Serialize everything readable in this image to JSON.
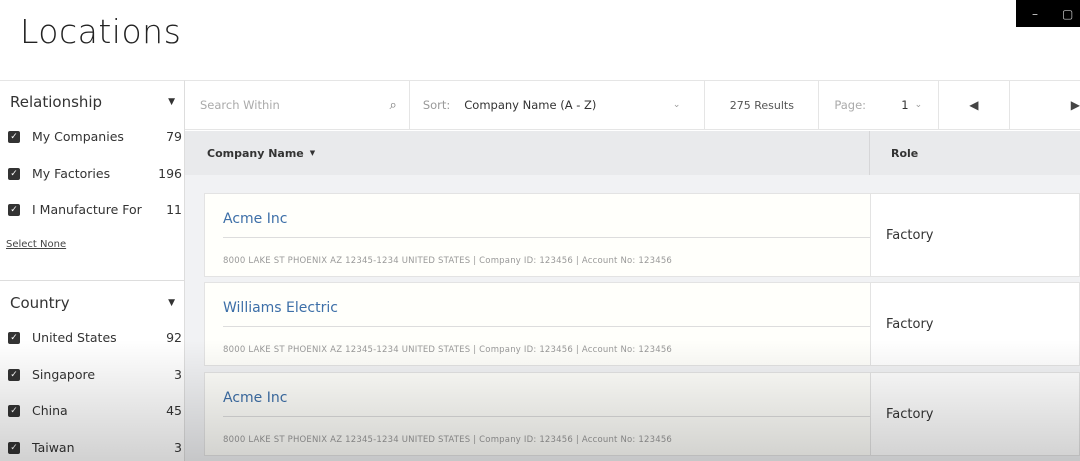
{
  "page_title": "Locations",
  "window_controls": {
    "minimize": "–",
    "restore": "▢"
  },
  "sidebar": {
    "relationship": {
      "title": "Relationship",
      "items": [
        {
          "label": "My Companies",
          "count": "79",
          "checked": true
        },
        {
          "label": "My Factories",
          "count": "196",
          "checked": true
        },
        {
          "label": "I Manufacture For",
          "count": "11",
          "checked": true
        }
      ],
      "select_none": "Select None"
    },
    "country": {
      "title": "Country",
      "items": [
        {
          "label": "United States",
          "count": "92",
          "checked": true
        },
        {
          "label": "Singapore",
          "count": "3",
          "checked": true
        },
        {
          "label": "China",
          "count": "45",
          "checked": true
        },
        {
          "label": "Taiwan",
          "count": "3",
          "checked": true
        }
      ]
    }
  },
  "toolbar": {
    "search_placeholder": "Search Within",
    "sort_label": "Sort:",
    "sort_value": "Company Name (A - Z)",
    "results": "275 Results",
    "page_label": "Page:",
    "page_value": "1"
  },
  "table": {
    "columns": [
      "Company Name",
      "Role"
    ],
    "rows": [
      {
        "name": "Acme Inc",
        "address": "8000 LAKE ST PHOENIX AZ 12345-1234 UNITED STATES | Company ID: 123456 | Account No: 123456",
        "role": "Factory"
      },
      {
        "name": "Williams Electric",
        "address": "8000 LAKE ST PHOENIX AZ 12345-1234 UNITED STATES | Company ID: 123456 | Account No: 123456",
        "role": "Factory"
      },
      {
        "name": "Acme Inc",
        "address": "8000 LAKE ST PHOENIX AZ 12345-1234 UNITED STATES | Company ID: 123456 | Account No: 123456",
        "role": "Factory"
      }
    ]
  }
}
